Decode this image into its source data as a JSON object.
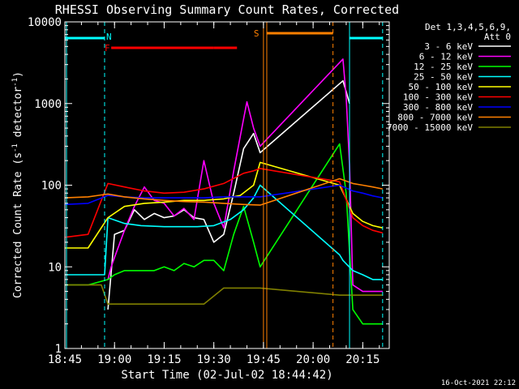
{
  "chart_data": {
    "type": "line",
    "title": "RHESSI Observing Summary Count Rates, Corrected",
    "xlabel": "Start Time (02-Jul-02 18:44:42)",
    "ylabel_main": "Corrected Count Rate (s",
    "ylabel_sup1": "-1",
    "ylabel_mid": " detector",
    "ylabel_sup2": "-1",
    "ylabel_end": ")",
    "y_scale": "log",
    "xlim": [
      "18:45",
      "20:23"
    ],
    "ylim": [
      1,
      10000
    ],
    "x_ticks": [
      "18:45",
      "19:00",
      "19:15",
      "19:30",
      "19:45",
      "20:00",
      "20:15"
    ],
    "y_ticks": [
      "1",
      "10",
      "100",
      "1000",
      "10000"
    ],
    "legend_title": [
      "Det 1,3,4,5,6,9,",
      "Att 0"
    ],
    "legend_position": "right",
    "footer_timestamp": "16-Oct-2021 22:12",
    "flag_labels": {
      "N": "N",
      "F": "F",
      "S": "S"
    },
    "series": [
      {
        "name": "3 - 6 keV",
        "color": "#ffffff",
        "x": [
          "18:58",
          "19:00",
          "19:03",
          "19:06",
          "19:09",
          "19:12",
          "19:15",
          "19:18",
          "19:21",
          "19:24",
          "19:27",
          "19:30",
          "19:33",
          "19:36",
          "19:39",
          "19:42",
          "19:44",
          "20:09",
          "20:10",
          "20:11"
        ],
        "values": [
          3,
          25,
          28,
          50,
          38,
          45,
          40,
          42,
          50,
          40,
          38,
          20,
          25,
          80,
          280,
          430,
          250,
          1900,
          1400,
          1000
        ]
      },
      {
        "name": "6 - 12 keV",
        "color": "#ff00ff",
        "x": [
          "18:58",
          "18:59",
          "19:00",
          "19:03",
          "19:06",
          "19:09",
          "19:12",
          "19:15",
          "19:18",
          "19:21",
          "19:24",
          "19:27",
          "19:30",
          "19:33",
          "19:36",
          "19:39",
          "19:40",
          "19:42",
          "19:44",
          "20:09",
          "20:10",
          "20:11",
          "20:12",
          "20:15",
          "20:18",
          "20:21"
        ],
        "values": [
          7,
          10,
          13,
          28,
          55,
          95,
          65,
          60,
          42,
          52,
          38,
          200,
          60,
          30,
          150,
          650,
          1050,
          500,
          300,
          3500,
          1200,
          180,
          6,
          5,
          5,
          5
        ]
      },
      {
        "name": "12 - 25 keV",
        "color": "#00ff00",
        "x": [
          "18:45",
          "18:52",
          "18:58",
          "19:00",
          "19:03",
          "19:06",
          "19:09",
          "19:12",
          "19:15",
          "19:18",
          "19:21",
          "19:24",
          "19:27",
          "19:30",
          "19:33",
          "19:36",
          "19:39",
          "19:42",
          "19:44",
          "20:08",
          "20:10",
          "20:12",
          "20:15",
          "20:18",
          "20:21"
        ],
        "values": [
          6,
          6,
          7,
          8,
          9,
          9,
          9,
          9,
          10,
          9,
          11,
          10,
          12,
          12,
          9,
          25,
          55,
          20,
          10,
          320,
          80,
          3,
          2,
          2,
          2
        ]
      },
      {
        "name": "25 - 50 keV",
        "color": "#00ffff",
        "x": [
          "18:45",
          "18:52",
          "18:57",
          "18:58",
          "19:03",
          "19:08",
          "19:15",
          "19:20",
          "19:25",
          "19:30",
          "19:35",
          "19:39",
          "19:42",
          "19:44",
          "20:08",
          "20:09",
          "20:12",
          "20:15",
          "20:18",
          "20:21"
        ],
        "values": [
          8,
          8,
          8,
          40,
          34,
          32,
          31,
          31,
          31,
          32,
          38,
          50,
          70,
          100,
          14,
          12,
          9,
          8,
          7,
          7
        ]
      },
      {
        "name": "50 - 100 keV",
        "color": "#ffff00",
        "x": [
          "18:45",
          "18:52",
          "18:58",
          "19:03",
          "19:09",
          "19:15",
          "19:21",
          "19:27",
          "19:33",
          "19:38",
          "19:42",
          "19:44",
          "20:08",
          "20:12",
          "20:15",
          "20:18",
          "20:21"
        ],
        "values": [
          17,
          17,
          40,
          55,
          60,
          62,
          65,
          65,
          68,
          75,
          100,
          190,
          100,
          45,
          36,
          32,
          30
        ]
      },
      {
        "name": "100 - 300 keV",
        "color": "#ff0000",
        "x": [
          "18:45",
          "18:52",
          "18:58",
          "19:03",
          "19:09",
          "19:15",
          "19:21",
          "19:27",
          "19:33",
          "19:39",
          "19:42",
          "19:44",
          "20:08",
          "20:12",
          "20:15",
          "20:18",
          "20:21"
        ],
        "values": [
          23,
          25,
          105,
          95,
          85,
          80,
          82,
          90,
          105,
          140,
          150,
          160,
          110,
          40,
          32,
          28,
          26
        ]
      },
      {
        "name": "300 - 800 keV",
        "color": "#0000ff",
        "x": [
          "18:45",
          "18:52",
          "18:58",
          "19:03",
          "19:09",
          "19:15",
          "19:21",
          "19:27",
          "19:33",
          "19:39",
          "19:44",
          "20:08",
          "20:12",
          "20:15",
          "20:18",
          "20:21"
        ],
        "values": [
          58,
          60,
          75,
          72,
          70,
          70,
          70,
          70,
          72,
          72,
          72,
          100,
          85,
          80,
          74,
          70
        ]
      },
      {
        "name": "800 - 7000 keV",
        "color": "#ff8000",
        "x": [
          "18:45",
          "18:52",
          "18:58",
          "19:03",
          "19:09",
          "19:15",
          "19:21",
          "19:27",
          "19:33",
          "19:39",
          "19:44",
          "20:08",
          "20:12",
          "20:15",
          "20:18",
          "20:21"
        ],
        "values": [
          70,
          72,
          78,
          72,
          68,
          65,
          63,
          62,
          60,
          58,
          57,
          120,
          105,
          100,
          95,
          90
        ]
      },
      {
        "name": "7000 - 15000 keV",
        "color": "#808000",
        "x": [
          "18:45",
          "18:52",
          "18:56",
          "18:58",
          "19:03",
          "19:09",
          "19:15",
          "19:21",
          "19:27",
          "19:33",
          "19:39",
          "19:44",
          "20:08",
          "20:12",
          "20:15",
          "20:18",
          "20:21"
        ],
        "values": [
          6,
          6,
          6,
          3.5,
          3.5,
          3.5,
          3.5,
          3.5,
          3.5,
          5.5,
          5.5,
          5.5,
          4.5,
          4.5,
          4.5,
          4.5,
          4.5
        ]
      }
    ]
  }
}
